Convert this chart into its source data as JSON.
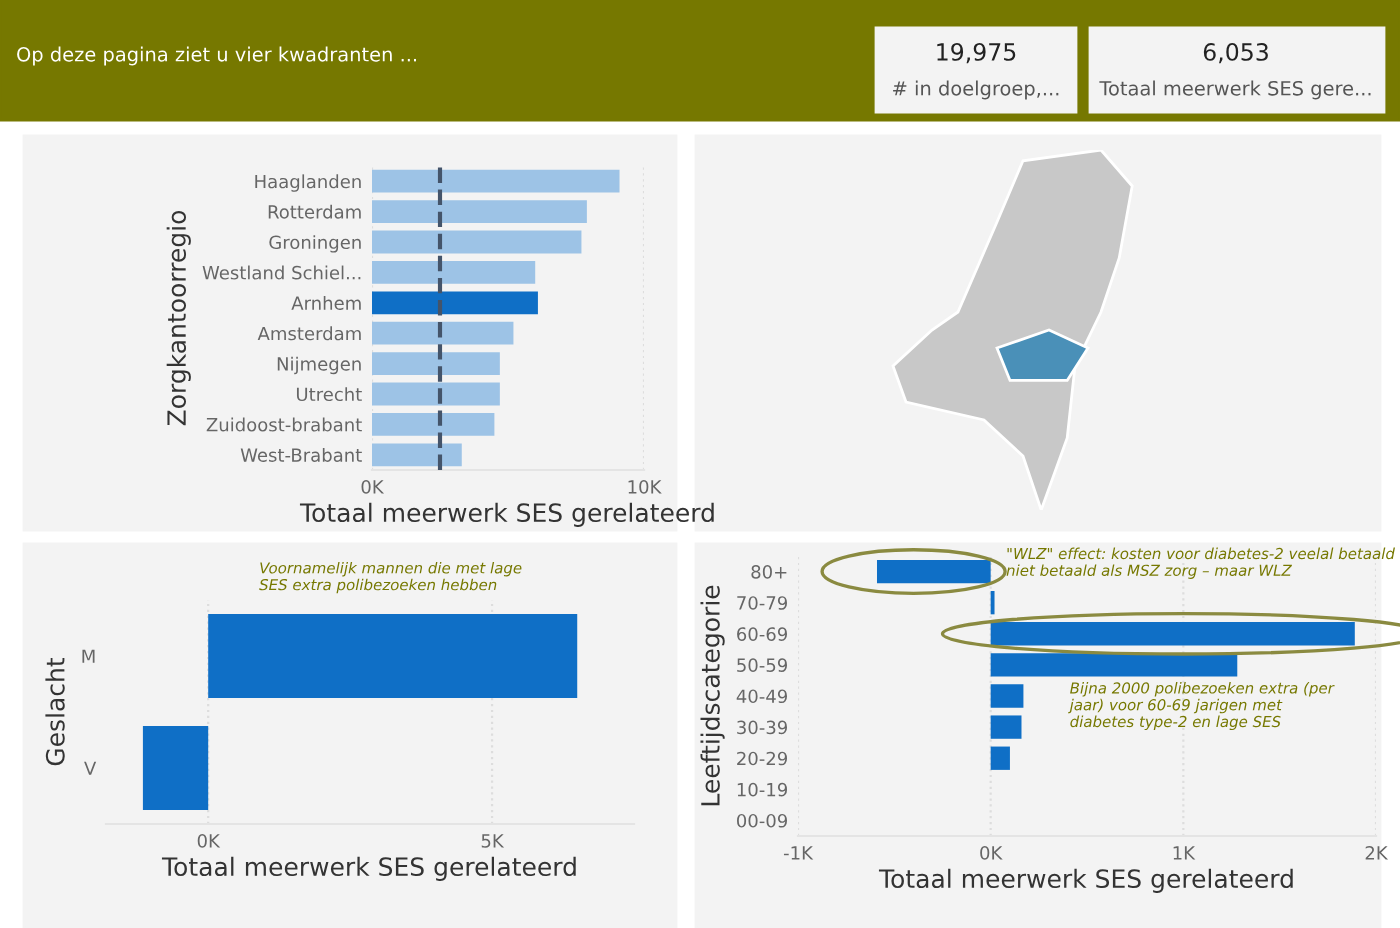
{
  "chart_data": [
    {
      "type": "other",
      "annotations": [
        "Op deze pagina ziet u vier kwadranten ...",
        "19,975",
        "# in doelgroep,...",
        "6,053",
        "Totaal meerwerk SES gere..."
      ]
    },
    {
      "type": "bar",
      "orientation": "horizontal",
      "xlabel": "Totaal meerwerk SES gerelateerd",
      "ylabel": "Zorgkantoorregio",
      "categories": [
        "Haaglanden",
        "Rotterdam",
        "Groningen",
        "Westland Schiel...",
        "Arnhem",
        "Amsterdam",
        "Nijmegen",
        "Utrecht",
        "Zuidoost-brabant",
        "West-Brabant"
      ],
      "values": [
        9100,
        7900,
        7700,
        6000,
        6100,
        5200,
        4700,
        4700,
        4500,
        3300
      ],
      "colors": [
        "#9dc3e6",
        "#9dc3e6",
        "#9dc3e6",
        "#9dc3e6",
        "#0f6fc6",
        "#9dc3e6",
        "#9dc3e6",
        "#9dc3e6",
        "#9dc3e6",
        "#9dc3e6"
      ],
      "xlim": [
        0,
        10000
      ],
      "xticks": [
        {
          "value": 0,
          "label": "0K"
        },
        {
          "value": 10000,
          "label": "10K"
        }
      ],
      "grid": "x",
      "ref_lines": [
        {
          "axis": "x",
          "value": 2500,
          "label": null,
          "color": "#44546a",
          "line_style": "dashed"
        }
      ]
    },
    {
      "type": "bar",
      "orientation": "horizontal",
      "xlabel": "Totaal meerwerk SES gerelateerd",
      "ylabel": "Geslacht",
      "categories": [
        "M",
        "V"
      ],
      "values": [
        6500,
        -1150
      ],
      "color": "#0f6fc6",
      "xlim": [
        -1800,
        7500
      ],
      "xticks": [
        {
          "value": 0,
          "label": "0K"
        },
        {
          "value": 5000,
          "label": "5K"
        }
      ],
      "grid": "x",
      "annotations": [
        "Voornamelijk mannen die met lage\nSES extra polibezoeken hebben"
      ]
    },
    {
      "type": "bar",
      "orientation": "horizontal",
      "xlabel": "Totaal meerwerk SES gerelateerd",
      "ylabel": "Leeftijdscategorie",
      "categories": [
        "80+",
        "70-79",
        "60-69",
        "50-59",
        "40-49",
        "30-39",
        "20-29",
        "10-19",
        "00-09"
      ],
      "values": [
        -590,
        20,
        1890,
        1280,
        170,
        160,
        100,
        0,
        0
      ],
      "color": "#0f6fc6",
      "xlim": [
        -1000,
        2000
      ],
      "xticks": [
        {
          "value": -1000,
          "label": "-1K"
        },
        {
          "value": 0,
          "label": "0K"
        },
        {
          "value": 1000,
          "label": "1K"
        },
        {
          "value": 2000,
          "label": "2K"
        }
      ],
      "grid": "x",
      "annotations": [
        "\"WLZ\" effect: kosten voor diabetes-2 veelal betaald\nniet betaald als MSZ zorg – maar WLZ",
        "Bijna 2000 polibezoeken extra (per\njaar) voor 60-69 jarigen met\ndiabetes type-2 en lage SES"
      ]
    }
  ]
}
